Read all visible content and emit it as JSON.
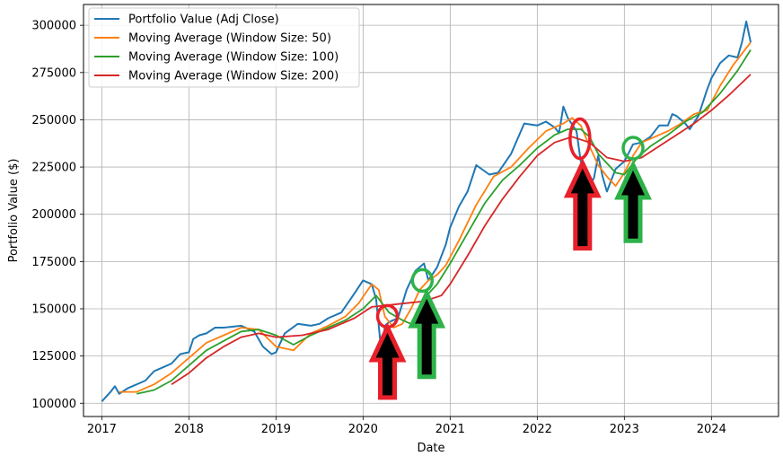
{
  "chart_data": {
    "type": "line",
    "xlabel": "Date",
    "ylabel": "Portfolio Value ($)",
    "xlim": [
      2016.79,
      2024.77
    ],
    "ylim": [
      93000,
      311000
    ],
    "x_ticks": [
      2017,
      2018,
      2019,
      2020,
      2021,
      2022,
      2023,
      2024
    ],
    "y_ticks": [
      100000,
      125000,
      150000,
      175000,
      200000,
      225000,
      250000,
      275000,
      300000
    ],
    "grid": true,
    "legend_position": "top-left",
    "series": [
      {
        "name": "Portfolio Value (Adj Close)",
        "color": "#1f77b4",
        "x": [
          2017.0,
          2017.1,
          2017.15,
          2017.2,
          2017.3,
          2017.5,
          2017.6,
          2017.7,
          2017.8,
          2017.9,
          2018.0,
          2018.05,
          2018.12,
          2018.2,
          2018.3,
          2018.4,
          2018.6,
          2018.75,
          2018.85,
          2018.95,
          2019.0,
          2019.1,
          2019.25,
          2019.4,
          2019.5,
          2019.6,
          2019.75,
          2019.9,
          2020.0,
          2020.1,
          2020.15,
          2020.2,
          2020.22,
          2020.25,
          2020.3,
          2020.4,
          2020.5,
          2020.6,
          2020.7,
          2020.75,
          2020.85,
          2020.95,
          2021.0,
          2021.1,
          2021.2,
          2021.3,
          2021.45,
          2021.55,
          2021.7,
          2021.85,
          2022.0,
          2022.1,
          2022.2,
          2022.25,
          2022.3,
          2022.35,
          2022.45,
          2022.5,
          2022.55,
          2022.6,
          2022.65,
          2022.7,
          2022.75,
          2022.8,
          2022.9,
          2023.0,
          2023.1,
          2023.2,
          2023.3,
          2023.4,
          2023.5,
          2023.55,
          2023.6,
          2023.7,
          2023.75,
          2023.85,
          2023.95,
          2024.0,
          2024.1,
          2024.2,
          2024.3,
          2024.35,
          2024.4,
          2024.45
        ],
        "y": [
          101000,
          106000,
          109000,
          105000,
          108000,
          112000,
          117000,
          119000,
          121000,
          126000,
          127000,
          134000,
          136000,
          137000,
          140000,
          140000,
          141000,
          138000,
          130000,
          126000,
          127000,
          137000,
          142000,
          141000,
          142000,
          145000,
          148000,
          158000,
          165000,
          163000,
          155000,
          132000,
          128000,
          141000,
          143000,
          145000,
          160000,
          170000,
          174000,
          165000,
          172000,
          184000,
          193000,
          204000,
          212000,
          226000,
          221000,
          222000,
          232000,
          248000,
          247000,
          249000,
          246000,
          243000,
          257000,
          251000,
          244000,
          228000,
          222000,
          216000,
          219000,
          231000,
          220000,
          212000,
          224000,
          228000,
          237000,
          238000,
          241000,
          247000,
          247000,
          253000,
          252000,
          248000,
          245000,
          252000,
          266000,
          272000,
          280000,
          284000,
          283000,
          291000,
          302000,
          291000
        ]
      },
      {
        "name": "Moving Average (Window Size: 50)",
        "color": "#ff7f0e",
        "x": [
          2017.2,
          2017.4,
          2017.6,
          2017.8,
          2018.0,
          2018.2,
          2018.4,
          2018.6,
          2018.8,
          2019.0,
          2019.2,
          2019.4,
          2019.6,
          2019.8,
          2019.95,
          2020.1,
          2020.18,
          2020.25,
          2020.35,
          2020.45,
          2020.55,
          2020.65,
          2020.75,
          2020.85,
          2020.95,
          2021.1,
          2021.3,
          2021.5,
          2021.7,
          2021.9,
          2022.1,
          2022.3,
          2022.4,
          2022.5,
          2022.6,
          2022.7,
          2022.8,
          2022.9,
          2023.0,
          2023.1,
          2023.2,
          2023.35,
          2023.5,
          2023.65,
          2023.8,
          2023.95,
          2024.1,
          2024.25,
          2024.4,
          2024.45
        ],
        "y": [
          106000,
          106000,
          110000,
          116000,
          124000,
          132000,
          136000,
          140000,
          139000,
          130000,
          128000,
          137000,
          141000,
          146000,
          153000,
          163000,
          160000,
          146000,
          140000,
          142000,
          150000,
          160000,
          165000,
          168000,
          173000,
          186000,
          205000,
          220000,
          225000,
          235000,
          244000,
          248000,
          251000,
          247000,
          236000,
          226000,
          220000,
          215000,
          222000,
          231000,
          238000,
          241000,
          244000,
          248000,
          253000,
          255000,
          268000,
          279000,
          288000,
          291000
        ]
      },
      {
        "name": "Moving Average (Window Size: 100)",
        "color": "#2ca02c",
        "x": [
          2017.4,
          2017.6,
          2017.8,
          2018.0,
          2018.2,
          2018.4,
          2018.6,
          2018.8,
          2019.0,
          2019.2,
          2019.4,
          2019.6,
          2019.8,
          2020.0,
          2020.15,
          2020.3,
          2020.45,
          2020.55,
          2020.65,
          2020.75,
          2020.85,
          2021.0,
          2021.2,
          2021.4,
          2021.6,
          2021.8,
          2022.0,
          2022.2,
          2022.35,
          2022.5,
          2022.6,
          2022.7,
          2022.8,
          2022.9,
          2023.0,
          2023.15,
          2023.3,
          2023.5,
          2023.7,
          2023.9,
          2024.1,
          2024.3,
          2024.45
        ],
        "y": [
          105000,
          107000,
          112000,
          120000,
          128000,
          133000,
          138000,
          139000,
          136000,
          131000,
          136000,
          140000,
          144000,
          150000,
          157000,
          148000,
          144000,
          142000,
          150000,
          158000,
          163000,
          174000,
          190000,
          206000,
          218000,
          226000,
          235000,
          242000,
          245000,
          245000,
          241000,
          232000,
          227000,
          222000,
          221000,
          230000,
          236000,
          242000,
          249000,
          254000,
          264000,
          276000,
          287000
        ]
      },
      {
        "name": "Moving Average (Window Size: 200)",
        "color": "#d62728",
        "x": [
          2017.8,
          2018.0,
          2018.2,
          2018.4,
          2018.6,
          2018.8,
          2019.0,
          2019.3,
          2019.6,
          2019.9,
          2020.1,
          2020.3,
          2020.5,
          2020.7,
          2020.9,
          2021.0,
          2021.2,
          2021.4,
          2021.6,
          2021.8,
          2022.0,
          2022.2,
          2022.4,
          2022.6,
          2022.8,
          2023.0,
          2023.2,
          2023.4,
          2023.6,
          2023.8,
          2024.0,
          2024.2,
          2024.45
        ],
        "y": [
          110000,
          116000,
          124000,
          130000,
          135000,
          137000,
          135000,
          136000,
          139000,
          145000,
          151000,
          152000,
          153000,
          154000,
          157000,
          163000,
          178000,
          194000,
          208000,
          220000,
          231000,
          238000,
          241000,
          238000,
          230000,
          228000,
          230000,
          236000,
          242000,
          248000,
          255000,
          263000,
          274000
        ]
      }
    ],
    "annotations": {
      "circles": [
        {
          "x": 2020.28,
          "y": 146000,
          "color": "#e8202a"
        },
        {
          "x": 2020.68,
          "y": 165000,
          "color": "#2db24a"
        },
        {
          "x": 2022.49,
          "y": 240000,
          "color": "#e8202a"
        },
        {
          "x": 2023.1,
          "y": 235000,
          "color": "#2db24a"
        }
      ],
      "arrows": [
        {
          "x": 2020.28,
          "y_tip": 140000,
          "y_base": 103000,
          "color": "#e8202a"
        },
        {
          "x": 2020.73,
          "y_tip": 158000,
          "y_base": 114000,
          "color": "#2db24a"
        },
        {
          "x": 2022.52,
          "y_tip": 227000,
          "y_base": 182000,
          "color": "#e8202a"
        },
        {
          "x": 2023.1,
          "y_tip": 226000,
          "y_base": 186000,
          "color": "#2db24a"
        }
      ]
    }
  }
}
